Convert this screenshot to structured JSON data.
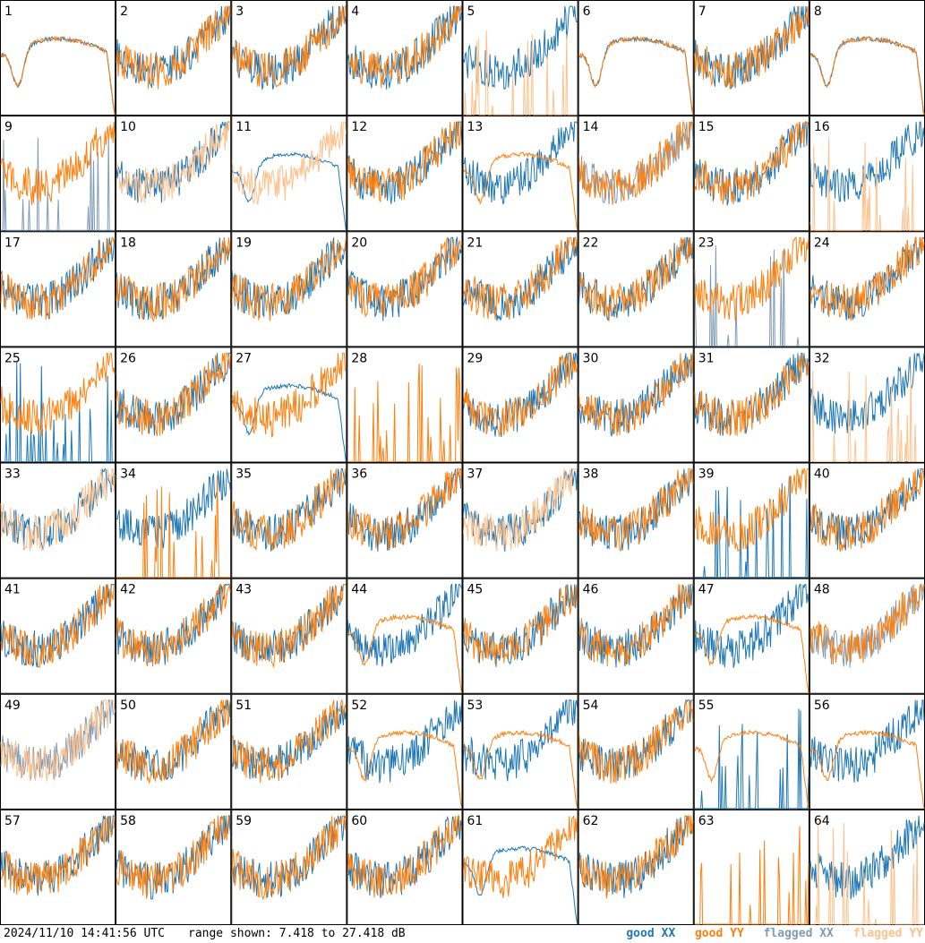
{
  "chart_data": {
    "type": "line",
    "layout": "small-multiples",
    "rows": 8,
    "cols": 8,
    "panel_labels": [
      "1",
      "2",
      "3",
      "4",
      "5",
      "6",
      "7",
      "8",
      "9",
      "10",
      "11",
      "12",
      "13",
      "14",
      "15",
      "16",
      "17",
      "18",
      "19",
      "20",
      "21",
      "22",
      "23",
      "24",
      "25",
      "26",
      "27",
      "28",
      "29",
      "30",
      "31",
      "32",
      "33",
      "34",
      "35",
      "36",
      "37",
      "38",
      "39",
      "40",
      "41",
      "42",
      "43",
      "44",
      "45",
      "46",
      "47",
      "48",
      "49",
      "50",
      "51",
      "52",
      "53",
      "54",
      "55",
      "56",
      "57",
      "58",
      "59",
      "60",
      "61",
      "62",
      "63",
      "64"
    ],
    "ylim": [
      7.418,
      27.418
    ],
    "unit": "dB",
    "series_legend": [
      {
        "name": "good XX",
        "color": "#1f77b4"
      },
      {
        "name": "good YY",
        "color": "#ff7f0e"
      },
      {
        "name": "flagged XX",
        "color": "#7f9bb5"
      },
      {
        "name": "flagged YY",
        "color": "#ffc08a"
      }
    ],
    "panel_flags": {
      "xx_flagged": [
        9,
        14,
        23,
        48,
        49
      ],
      "yy_flagged": [
        5,
        10,
        11,
        16,
        32,
        33,
        37,
        49,
        64
      ],
      "xx_smooth": [
        1,
        6,
        8,
        11,
        27,
        61
      ],
      "yy_smooth": [
        1,
        6,
        8,
        13,
        44,
        47,
        52,
        55,
        56,
        53
      ],
      "xx_spiky": [
        9,
        23,
        25,
        39,
        55
      ],
      "yy_spiky": [
        5,
        16,
        28,
        34,
        63,
        64,
        32
      ],
      "xx_missing": [
        28,
        63
      ],
      "yy_missing": []
    }
  },
  "footer": {
    "timestamp": "2024/11/10 14:41:56 UTC",
    "range_text": "range shown: 7.418 to 27.418 dB"
  },
  "legend": {
    "good_xx": "good XX",
    "good_yy": "good YY",
    "flagged_xx": "flagged XX",
    "flagged_yy": "flagged YY"
  },
  "colors": {
    "good_xx": "#1f77b4",
    "good_yy": "#ff7f0e",
    "flagged_xx": "#7f9bb5",
    "flagged_yy": "#ffc08a"
  }
}
